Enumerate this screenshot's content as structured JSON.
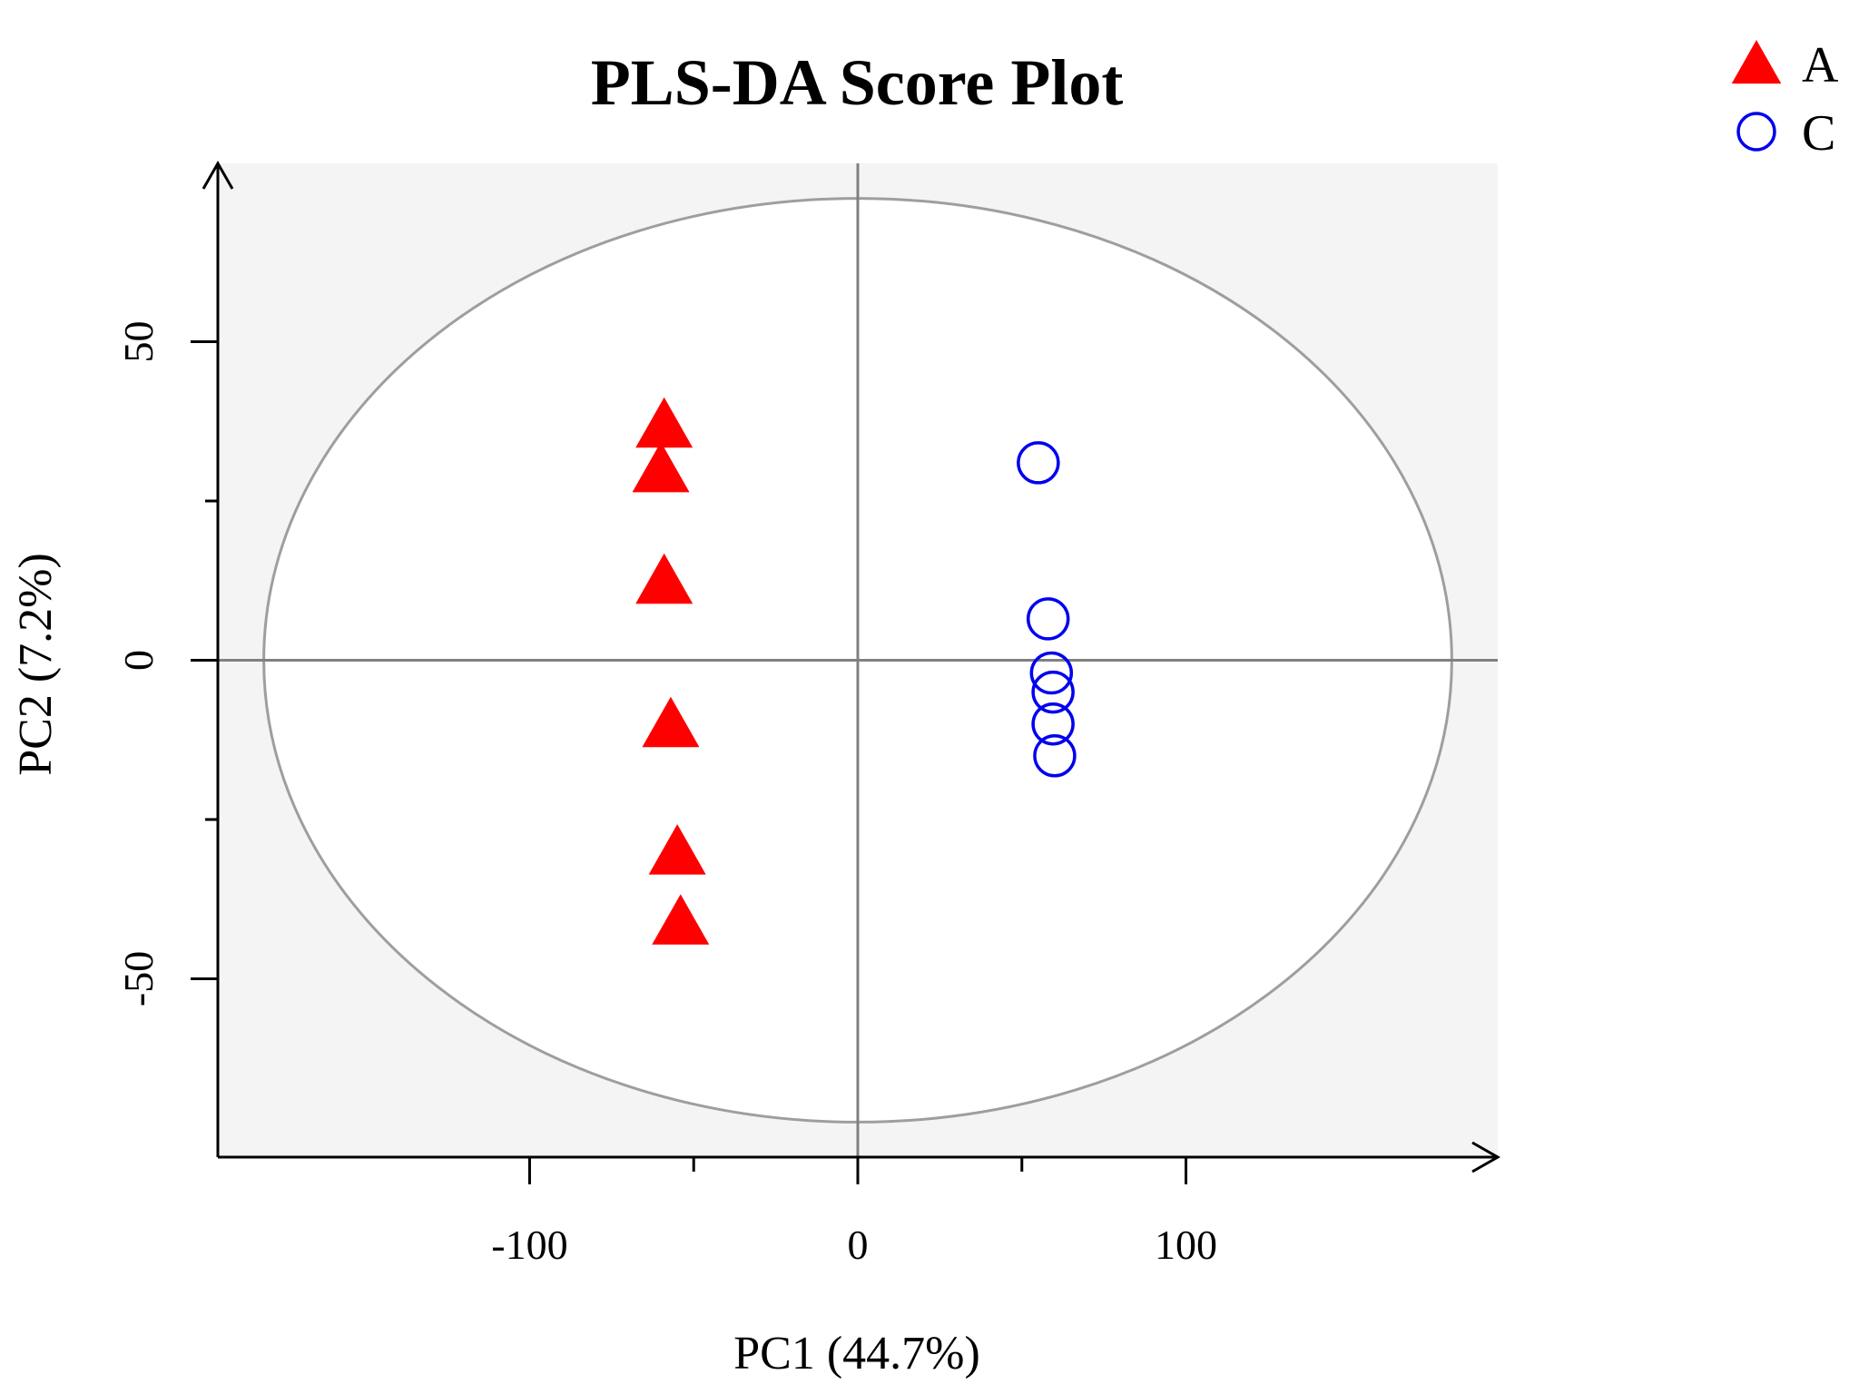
{
  "chart_data": {
    "type": "scatter",
    "title": "PLS-DA Score Plot",
    "xlabel": "PC1 (44.7%)",
    "ylabel": "PC2 (7.2%)",
    "xlim": [
      -195,
      195
    ],
    "ylim": [
      -78,
      78
    ],
    "x_ticks": [
      -100,
      0,
      100
    ],
    "y_ticks": [
      -50,
      0,
      50
    ],
    "grid": false,
    "legend_position": "top-right",
    "background_color": "#f4f4f4",
    "confidence_ellipse": {
      "center": [
        0,
        0
      ],
      "semi_axis_x": 181,
      "semi_axis_y": 72.5,
      "color": "#9e9e9e"
    },
    "series": [
      {
        "name": "A",
        "marker": "filled-triangle",
        "color": "#ff0000",
        "points": [
          [
            -59,
            37
          ],
          [
            -60,
            30
          ],
          [
            -59,
            12.5
          ],
          [
            -57,
            -10
          ],
          [
            -55,
            -30
          ],
          [
            -54,
            -41
          ]
        ]
      },
      {
        "name": "C",
        "marker": "open-circle",
        "color": "#0000ee",
        "points": [
          [
            55,
            31
          ],
          [
            58,
            6.5
          ],
          [
            59,
            -2
          ],
          [
            59.5,
            -5
          ],
          [
            59.5,
            -10
          ],
          [
            60,
            -15
          ]
        ]
      }
    ]
  }
}
